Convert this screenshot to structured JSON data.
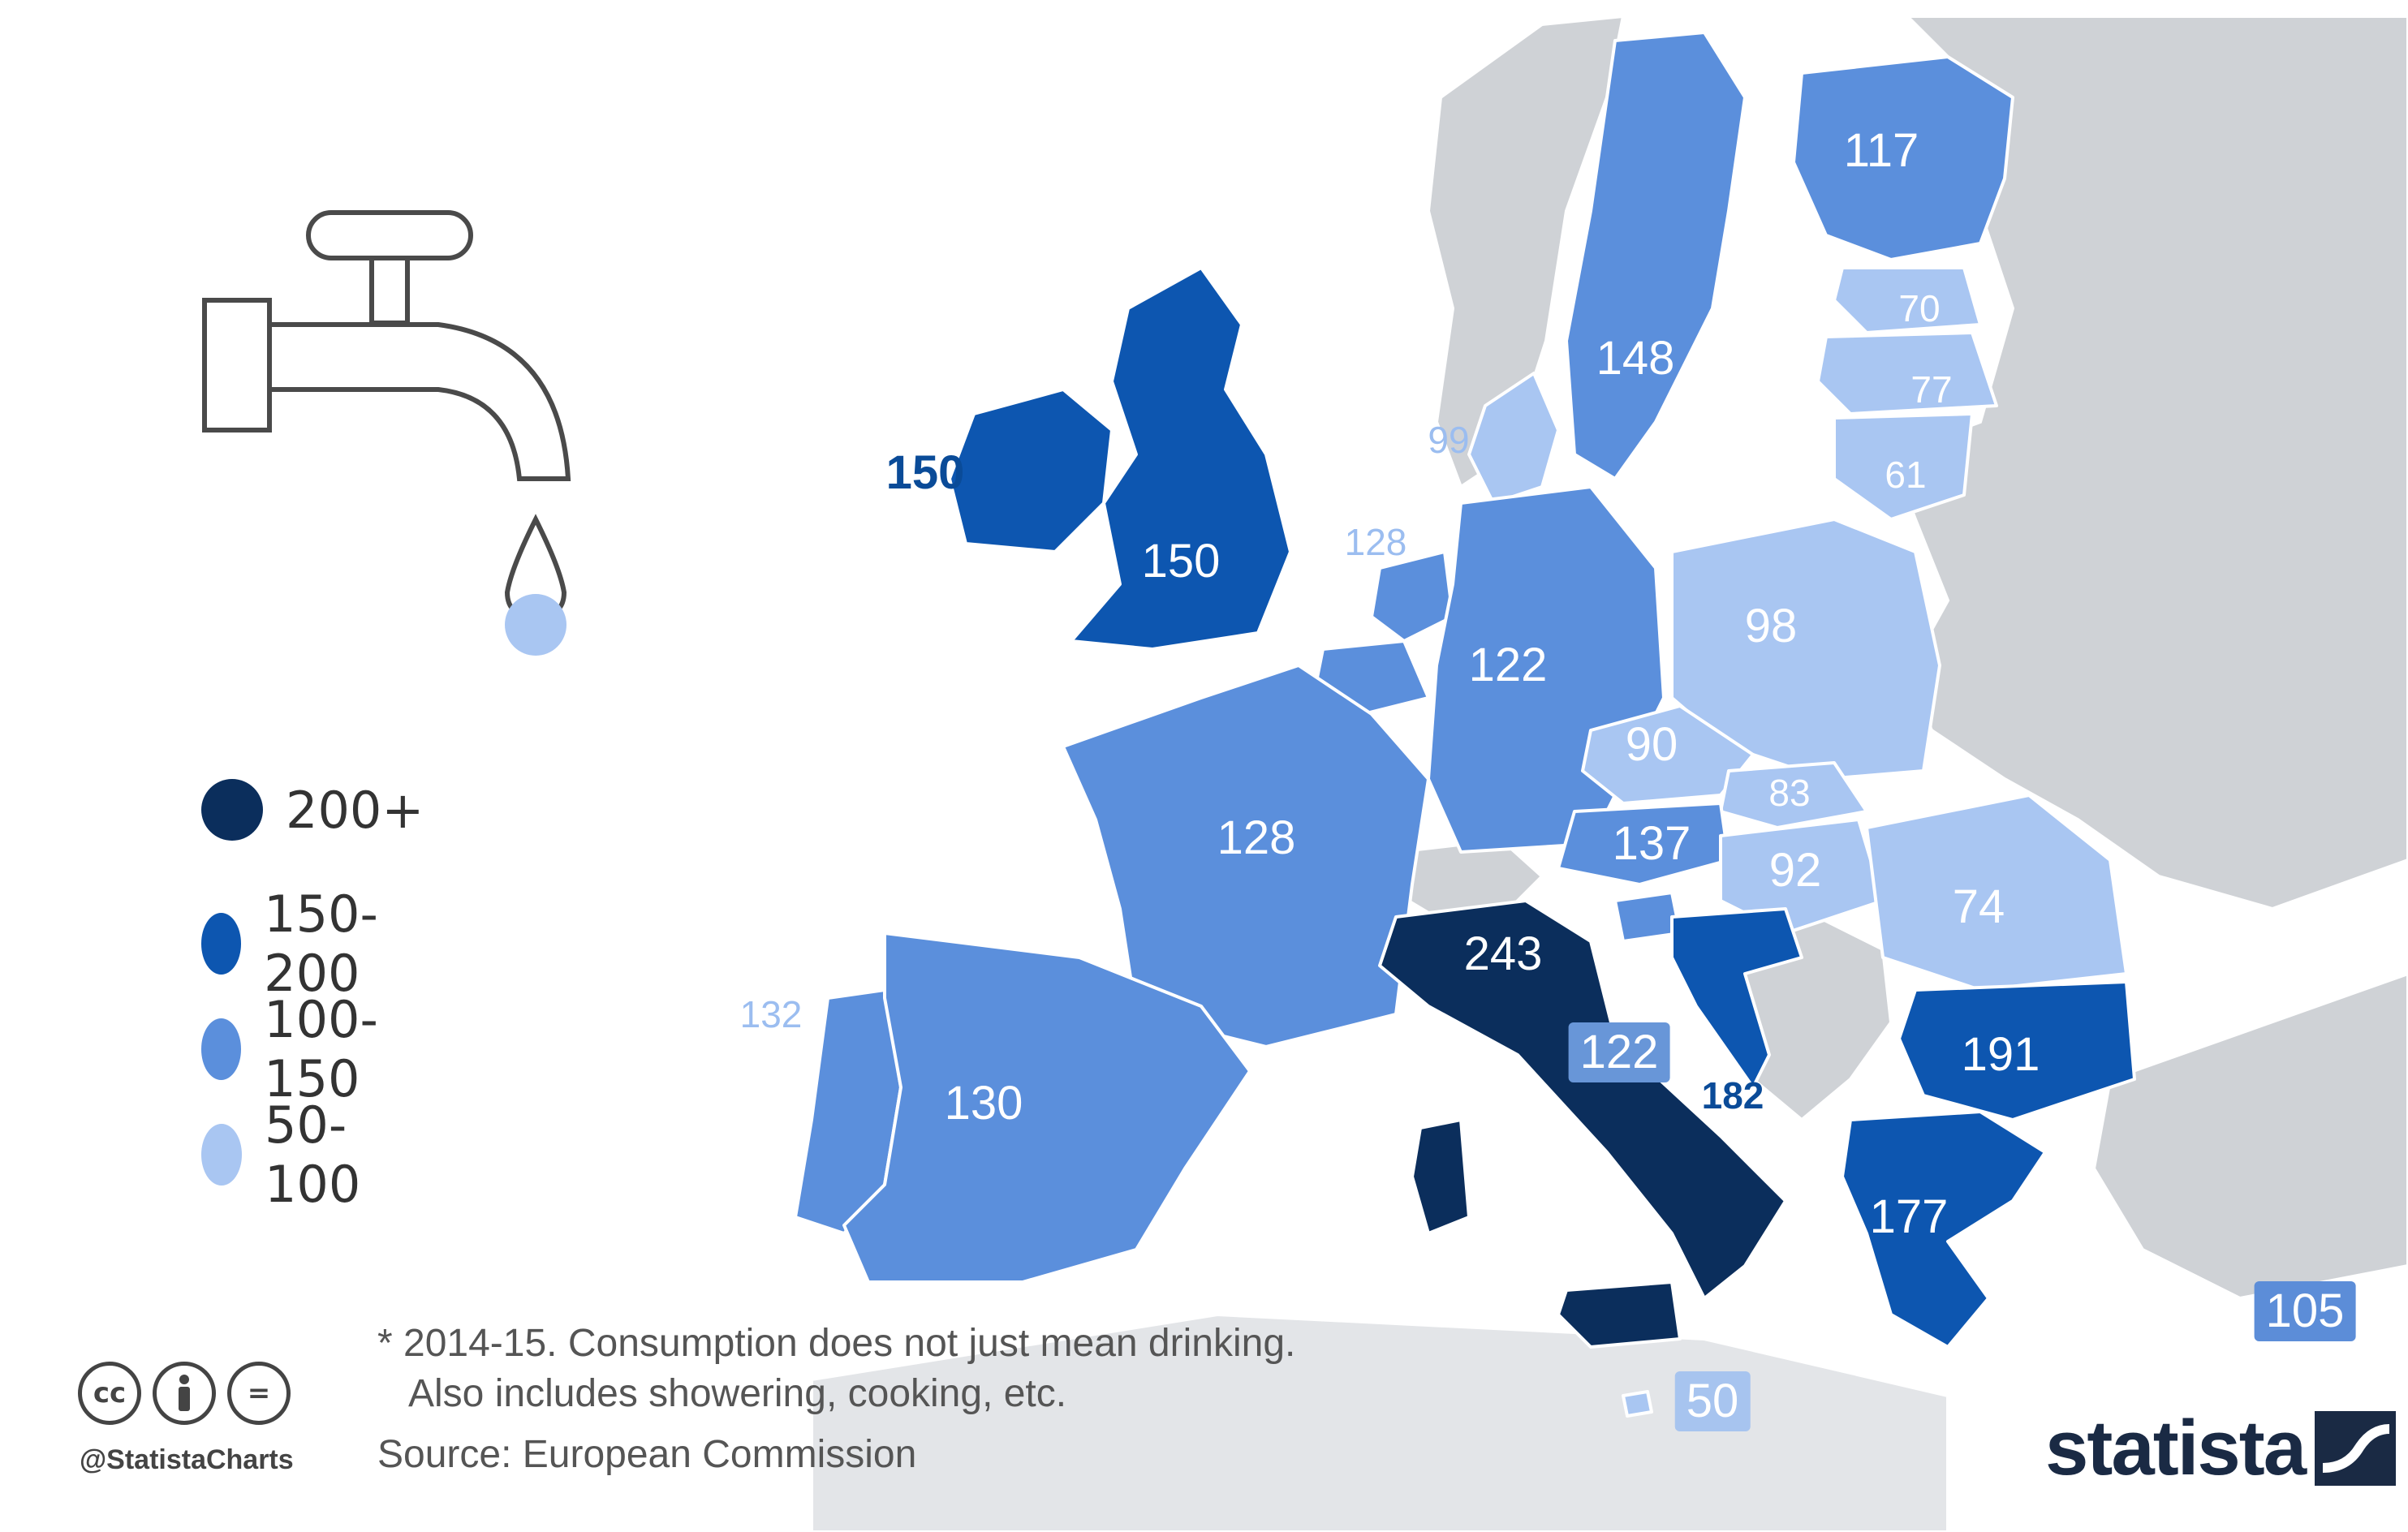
{
  "legend": [
    {
      "label": "200+",
      "color": "#0b2e5c"
    },
    {
      "label": "150-200",
      "color": "#0d56b0"
    },
    {
      "label": "100-150",
      "color": "#5b8fdc"
    },
    {
      "label": "50-100",
      "color": "#a9c6f2"
    }
  ],
  "countries": [
    {
      "name": "Finland",
      "value": "117"
    },
    {
      "name": "Sweden",
      "value": "148"
    },
    {
      "name": "Estonia",
      "value": "70"
    },
    {
      "name": "Latvia",
      "value": "77"
    },
    {
      "name": "Lithuania",
      "value": "61"
    },
    {
      "name": "Denmark",
      "value": "99"
    },
    {
      "name": "Ireland",
      "value": "150"
    },
    {
      "name": "United Kingdom",
      "value": "150"
    },
    {
      "name": "Netherlands",
      "value": "128"
    },
    {
      "name": "Germany",
      "value": "122"
    },
    {
      "name": "Poland",
      "value": "98"
    },
    {
      "name": "Czech Republic",
      "value": "90"
    },
    {
      "name": "Slovakia",
      "value": "83"
    },
    {
      "name": "Austria",
      "value": "137"
    },
    {
      "name": "Hungary",
      "value": "92"
    },
    {
      "name": "Romania",
      "value": "74"
    },
    {
      "name": "France",
      "value": "128"
    },
    {
      "name": "Italy",
      "value": "243"
    },
    {
      "name": "Slovenia",
      "value": "122"
    },
    {
      "name": "Croatia",
      "value": "182"
    },
    {
      "name": "Bulgaria",
      "value": "191"
    },
    {
      "name": "Greece",
      "value": "177"
    },
    {
      "name": "Portugal",
      "value": "132"
    },
    {
      "name": "Spain",
      "value": "130"
    },
    {
      "name": "Malta",
      "value": "50"
    },
    {
      "name": "Cyprus",
      "value": "105"
    }
  ],
  "colors": {
    "tier_200_plus": "#0b2e5c",
    "tier_150_200": "#0d56b0",
    "tier_100_150": "#5b8fdc",
    "tier_50_100": "#a9c6f2",
    "no_data": "#cfd2d6",
    "sea": "#ffffff"
  },
  "icons": {
    "main": "water-tap-icon",
    "license": [
      "creative-commons-icon",
      "attribution-icon",
      "no-derivatives-icon"
    ]
  },
  "footnote": {
    "line1": "* 2014-15. Consumption does not just mean drinking.",
    "line2": "Also includes showering, cooking, etc."
  },
  "source": "Source: European Commission",
  "handle": "@StatistaCharts",
  "brand": "statista"
}
